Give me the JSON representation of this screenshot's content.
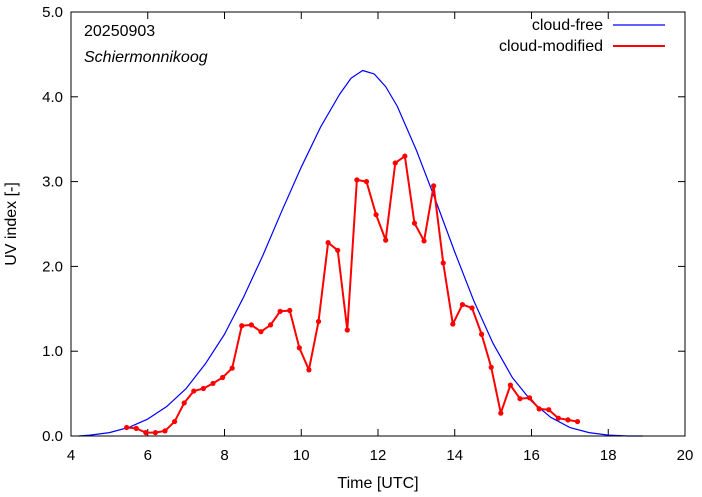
{
  "chart_data": {
    "type": "line",
    "title": "",
    "xlabel": "Time  [UTC]",
    "ylabel": "UV index  [-]",
    "xlim": [
      4,
      20
    ],
    "ylim": [
      0,
      5
    ],
    "x_ticks": [
      4,
      6,
      8,
      10,
      12,
      14,
      16,
      18,
      20
    ],
    "x_tick_labels": [
      "4",
      "6",
      "8",
      "10",
      "12",
      "14",
      "16",
      "18",
      "20"
    ],
    "y_ticks": [
      0,
      1,
      2,
      3,
      4,
      5
    ],
    "y_tick_labels": [
      "0.0",
      "1.0",
      "2.0",
      "3.0",
      "4.0",
      "5.0"
    ],
    "grid": false,
    "legend_position": "top-right",
    "annotations": [
      "20250903",
      "Schiermonnikoog"
    ],
    "series": [
      {
        "name": "cloud-free",
        "color": "#0000ff",
        "marker": "none",
        "x": [
          4.2,
          4.5,
          5.0,
          5.5,
          6.0,
          6.5,
          7.0,
          7.5,
          8.0,
          8.5,
          9.0,
          9.5,
          10.0,
          10.5,
          11.0,
          11.3,
          11.6,
          11.9,
          12.2,
          12.5,
          13.0,
          13.5,
          14.0,
          14.5,
          15.0,
          15.5,
          16.0,
          16.5,
          17.0,
          17.5,
          18.0,
          18.5,
          18.9
        ],
        "y": [
          0.0,
          0.01,
          0.04,
          0.1,
          0.2,
          0.35,
          0.56,
          0.85,
          1.2,
          1.64,
          2.13,
          2.66,
          3.17,
          3.64,
          4.03,
          4.22,
          4.31,
          4.27,
          4.12,
          3.89,
          3.37,
          2.78,
          2.17,
          1.59,
          1.09,
          0.69,
          0.41,
          0.22,
          0.1,
          0.04,
          0.01,
          0.0,
          0.0
        ]
      },
      {
        "name": "cloud-modified",
        "color": "#ff0000",
        "marker": "circle",
        "x": [
          5.45,
          5.7,
          5.95,
          6.2,
          6.45,
          6.7,
          6.95,
          7.2,
          7.45,
          7.7,
          7.95,
          8.2,
          8.45,
          8.7,
          8.95,
          9.2,
          9.45,
          9.7,
          9.95,
          10.2,
          10.45,
          10.7,
          10.95,
          11.2,
          11.45,
          11.7,
          11.95,
          12.2,
          12.45,
          12.7,
          12.95,
          13.2,
          13.45,
          13.7,
          13.95,
          14.2,
          14.45,
          14.7,
          14.95,
          15.2,
          15.45,
          15.7,
          15.95,
          16.2,
          16.45,
          16.7,
          16.95,
          17.2
        ],
        "y": [
          0.1,
          0.09,
          0.04,
          0.04,
          0.06,
          0.17,
          0.39,
          0.53,
          0.56,
          0.62,
          0.69,
          0.8,
          1.3,
          1.31,
          1.23,
          1.31,
          1.47,
          1.48,
          1.04,
          0.78,
          1.35,
          2.28,
          2.19,
          1.25,
          3.02,
          3.0,
          2.61,
          2.31,
          3.22,
          3.3,
          2.51,
          2.3,
          2.95,
          2.04,
          1.32,
          1.55,
          1.51,
          1.2,
          0.81,
          0.27,
          0.6,
          0.44,
          0.45,
          0.32,
          0.31,
          0.21,
          0.19,
          0.17
        ]
      }
    ]
  }
}
